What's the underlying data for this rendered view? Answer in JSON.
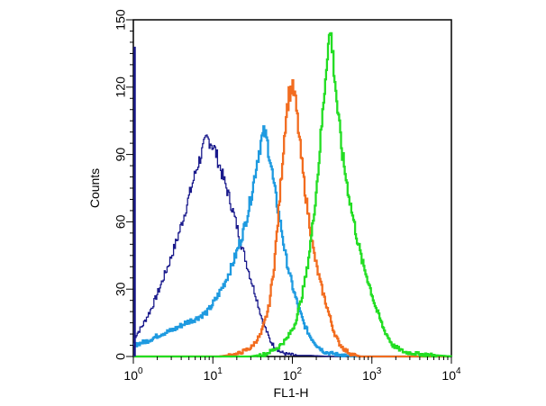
{
  "chart_data": {
    "type": "line",
    "title": "",
    "xlabel": "FL1-H",
    "ylabel": "Counts",
    "xscale": "log",
    "xlim": [
      1,
      10000
    ],
    "ylim": [
      0,
      150
    ],
    "x_ticks": [
      {
        "value": 1,
        "base": "10",
        "exp": "0"
      },
      {
        "value": 10,
        "base": "10",
        "exp": "1"
      },
      {
        "value": 100,
        "base": "10",
        "exp": "2"
      },
      {
        "value": 1000,
        "base": "10",
        "exp": "3"
      },
      {
        "value": 10000,
        "base": "10",
        "exp": "4"
      }
    ],
    "y_ticks": [
      "0",
      "30",
      "60",
      "90",
      "120",
      "150"
    ],
    "grid": false,
    "legend": "none",
    "series": [
      {
        "color": "#1a1a8c",
        "stroke_width": 1.3,
        "x": [
          1,
          1.3,
          1.7,
          2.2,
          2.8,
          3.5,
          4.3,
          5.2,
          6.2,
          7.2,
          8.3,
          9.2,
          10.5,
          11.8,
          13.2,
          15,
          17,
          19.5,
          22.5,
          26,
          30,
          35,
          40,
          46,
          52,
          60,
          70,
          85,
          110,
          160,
          300,
          1000,
          10000
        ],
        "y": [
          8,
          14,
          22,
          32,
          42,
          52,
          63,
          74,
          84,
          91,
          97,
          96,
          92,
          86,
          80,
          74,
          67,
          59,
          50,
          42,
          34,
          26,
          18,
          12,
          7,
          4,
          2,
          1,
          0.5,
          0.5,
          0,
          0,
          0
        ]
      },
      {
        "color": "#1e9ae0",
        "stroke_width": 2.3,
        "x": [
          1,
          1.5,
          2.2,
          3.2,
          4.5,
          6.2,
          8.5,
          11,
          14,
          17,
          20,
          24,
          28,
          32,
          36,
          40,
          44,
          48,
          53,
          58,
          64,
          72,
          80,
          92,
          105,
          120,
          140,
          165,
          200,
          250,
          350,
          600,
          10000
        ],
        "y": [
          5,
          7,
          10,
          12,
          15,
          17,
          20,
          26,
          33,
          40,
          47,
          56,
          66,
          77,
          88,
          96,
          100,
          95,
          86,
          76,
          67,
          57,
          46,
          36,
          28,
          21,
          14,
          9,
          5,
          2,
          1,
          0,
          0
        ]
      },
      {
        "color": "#f26c1f",
        "stroke_width": 2.3,
        "x": [
          1,
          12,
          20,
          30,
          40,
          50,
          58,
          66,
          74,
          82,
          90,
          98,
          106,
          115,
          125,
          136,
          150,
          165,
          180,
          200,
          225,
          255,
          290,
          330,
          380,
          450,
          550,
          700,
          10000
        ],
        "y": [
          0,
          0,
          1,
          4,
          10,
          22,
          40,
          63,
          87,
          107,
          117,
          120,
          116,
          105,
          92,
          80,
          68,
          58,
          48,
          40,
          32,
          25,
          18,
          11,
          6,
          3,
          1,
          0,
          0
        ]
      },
      {
        "color": "#22dd22",
        "stroke_width": 2.3,
        "x": [
          1,
          30,
          45,
          65,
          85,
          105,
          125,
          150,
          175,
          205,
          240,
          275,
          300,
          330,
          370,
          420,
          480,
          550,
          640,
          750,
          900,
          1100,
          1400,
          1800,
          2500,
          4000,
          10000
        ],
        "y": [
          0,
          0,
          1,
          4,
          8,
          14,
          24,
          38,
          56,
          80,
          110,
          138,
          145,
          128,
          108,
          90,
          77,
          65,
          53,
          42,
          33,
          22,
          12,
          5,
          2,
          1,
          0
        ]
      }
    ]
  }
}
